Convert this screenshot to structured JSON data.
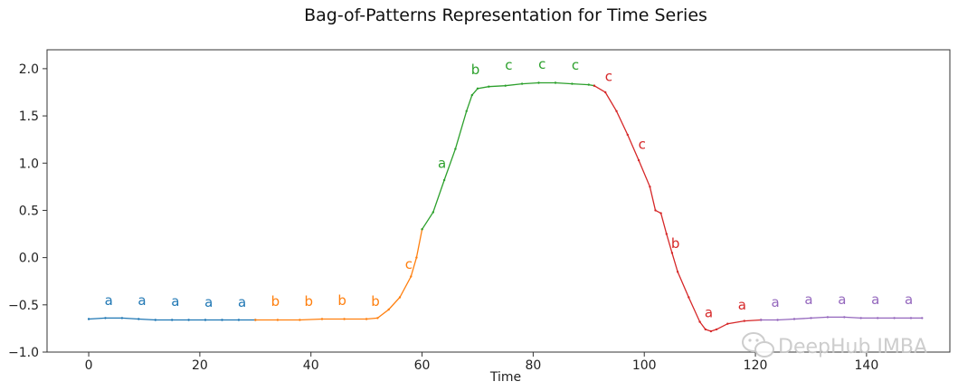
{
  "chart_data": {
    "type": "line",
    "title": "Bag-of-Patterns Representation for Time Series",
    "xlabel": "Time",
    "ylabel": "",
    "xlim": [
      -7.5,
      155
    ],
    "ylim": [
      -1.0,
      2.2
    ],
    "xticks": [
      0,
      20,
      40,
      60,
      80,
      100,
      120,
      140
    ],
    "yticks": [
      -1.0,
      -0.5,
      0.0,
      0.5,
      1.0,
      1.5,
      2.0
    ],
    "grid": false,
    "series": [
      {
        "color": "#1f77b4",
        "points": [
          [
            0,
            -0.65
          ],
          [
            3,
            -0.64
          ],
          [
            6,
            -0.64
          ],
          [
            9,
            -0.65
          ],
          [
            12,
            -0.66
          ],
          [
            15,
            -0.66
          ],
          [
            18,
            -0.66
          ],
          [
            21,
            -0.66
          ],
          [
            24,
            -0.66
          ],
          [
            27,
            -0.66
          ],
          [
            30,
            -0.66
          ]
        ]
      },
      {
        "color": "#ff7f0e",
        "points": [
          [
            30,
            -0.66
          ],
          [
            34,
            -0.66
          ],
          [
            38,
            -0.66
          ],
          [
            42,
            -0.65
          ],
          [
            46,
            -0.65
          ],
          [
            50,
            -0.65
          ],
          [
            52,
            -0.64
          ],
          [
            54,
            -0.55
          ],
          [
            56,
            -0.42
          ],
          [
            58,
            -0.2
          ],
          [
            59,
            0.0
          ],
          [
            60,
            0.3
          ]
        ]
      },
      {
        "color": "#2ca02c",
        "points": [
          [
            60,
            0.3
          ],
          [
            62,
            0.48
          ],
          [
            64,
            0.82
          ],
          [
            66,
            1.15
          ],
          [
            68,
            1.55
          ],
          [
            69,
            1.72
          ],
          [
            70,
            1.79
          ],
          [
            72,
            1.81
          ],
          [
            75,
            1.82
          ],
          [
            78,
            1.84
          ],
          [
            81,
            1.85
          ],
          [
            84,
            1.85
          ],
          [
            87,
            1.84
          ],
          [
            90,
            1.83
          ],
          [
            91,
            1.82
          ]
        ]
      },
      {
        "color": "#d62728",
        "points": [
          [
            91,
            1.82
          ],
          [
            93,
            1.75
          ],
          [
            95,
            1.55
          ],
          [
            97,
            1.3
          ],
          [
            99,
            1.03
          ],
          [
            101,
            0.75
          ],
          [
            102,
            0.5
          ],
          [
            103,
            0.47
          ],
          [
            104,
            0.25
          ],
          [
            105,
            0.05
          ],
          [
            106,
            -0.15
          ],
          [
            108,
            -0.42
          ],
          [
            110,
            -0.68
          ],
          [
            111,
            -0.76
          ],
          [
            112,
            -0.78
          ],
          [
            113,
            -0.76
          ],
          [
            115,
            -0.7
          ],
          [
            118,
            -0.67
          ],
          [
            121,
            -0.66
          ]
        ]
      },
      {
        "color": "#9467bd",
        "points": [
          [
            121,
            -0.66
          ],
          [
            124,
            -0.66
          ],
          [
            127,
            -0.65
          ],
          [
            130,
            -0.64
          ],
          [
            133,
            -0.63
          ],
          [
            136,
            -0.63
          ],
          [
            139,
            -0.64
          ],
          [
            142,
            -0.64
          ],
          [
            145,
            -0.64
          ],
          [
            148,
            -0.64
          ],
          [
            150,
            -0.64
          ]
        ]
      }
    ],
    "annotations": [
      {
        "x": 3.6,
        "y": -0.5,
        "text": "a",
        "color": "#1f77b4"
      },
      {
        "x": 9.6,
        "y": -0.5,
        "text": "a",
        "color": "#1f77b4"
      },
      {
        "x": 15.6,
        "y": -0.51,
        "text": "a",
        "color": "#1f77b4"
      },
      {
        "x": 21.6,
        "y": -0.52,
        "text": "a",
        "color": "#1f77b4"
      },
      {
        "x": 27.6,
        "y": -0.52,
        "text": "a",
        "color": "#1f77b4"
      },
      {
        "x": 33.6,
        "y": -0.51,
        "text": "b",
        "color": "#ff7f0e"
      },
      {
        "x": 39.6,
        "y": -0.51,
        "text": "b",
        "color": "#ff7f0e"
      },
      {
        "x": 45.6,
        "y": -0.5,
        "text": "b",
        "color": "#ff7f0e"
      },
      {
        "x": 51.6,
        "y": -0.51,
        "text": "b",
        "color": "#ff7f0e"
      },
      {
        "x": 57.6,
        "y": -0.12,
        "text": "c",
        "color": "#ff7f0e"
      },
      {
        "x": 63.6,
        "y": 0.95,
        "text": "a",
        "color": "#2ca02c"
      },
      {
        "x": 69.6,
        "y": 1.94,
        "text": "b",
        "color": "#2ca02c"
      },
      {
        "x": 75.6,
        "y": 1.99,
        "text": "c",
        "color": "#2ca02c"
      },
      {
        "x": 81.6,
        "y": 2.0,
        "text": "c",
        "color": "#2ca02c"
      },
      {
        "x": 87.6,
        "y": 1.99,
        "text": "c",
        "color": "#2ca02c"
      },
      {
        "x": 93.6,
        "y": 1.87,
        "text": "c",
        "color": "#d62728"
      },
      {
        "x": 99.6,
        "y": 1.15,
        "text": "c",
        "color": "#d62728"
      },
      {
        "x": 105.6,
        "y": 0.1,
        "text": "b",
        "color": "#d62728"
      },
      {
        "x": 111.6,
        "y": -0.63,
        "text": "a",
        "color": "#d62728"
      },
      {
        "x": 117.6,
        "y": -0.55,
        "text": "a",
        "color": "#d62728"
      },
      {
        "x": 123.6,
        "y": -0.52,
        "text": "a",
        "color": "#9467bd"
      },
      {
        "x": 129.6,
        "y": -0.49,
        "text": "a",
        "color": "#9467bd"
      },
      {
        "x": 135.6,
        "y": -0.49,
        "text": "a",
        "color": "#9467bd"
      },
      {
        "x": 141.6,
        "y": -0.49,
        "text": "a",
        "color": "#9467bd"
      },
      {
        "x": 147.6,
        "y": -0.49,
        "text": "a",
        "color": "#9467bd"
      }
    ]
  },
  "watermark": {
    "text": "DeepHub IMBA",
    "icon": "wechat-icon"
  }
}
